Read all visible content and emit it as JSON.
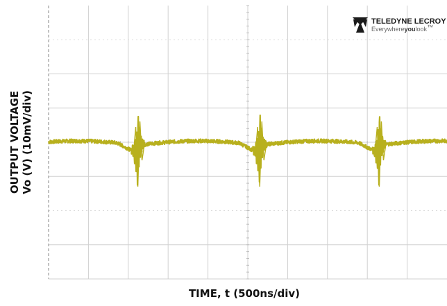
{
  "chart_data": {
    "type": "line",
    "title": "",
    "ylabel_line1": "OUTPUT VOLTAGE",
    "ylabel_line2": "Vo (V) (10mV/div)",
    "xlabel": "TIME, t (500ns/div)",
    "x_divisions": 10,
    "y_divisions": 8,
    "xlim": [
      0,
      5000
    ],
    "ylim": [
      -40,
      40
    ],
    "x_unit": "ns",
    "y_unit": "mV",
    "grid": true,
    "series": [
      {
        "color": "#b8b01e",
        "switching_events_ns": [
          1120,
          2650,
          4150
        ],
        "baseline_mV": 0
      }
    ]
  },
  "logo": {
    "brand": "TELEDYNE LECROY",
    "tagline_start": "Everywhere",
    "tagline_bold": "you",
    "tagline_end": "look",
    "tagline_mark": "™"
  },
  "colors": {
    "trace": "#b8b01e",
    "grid": "#d0d0d0",
    "frame": "#9a9a9a"
  }
}
